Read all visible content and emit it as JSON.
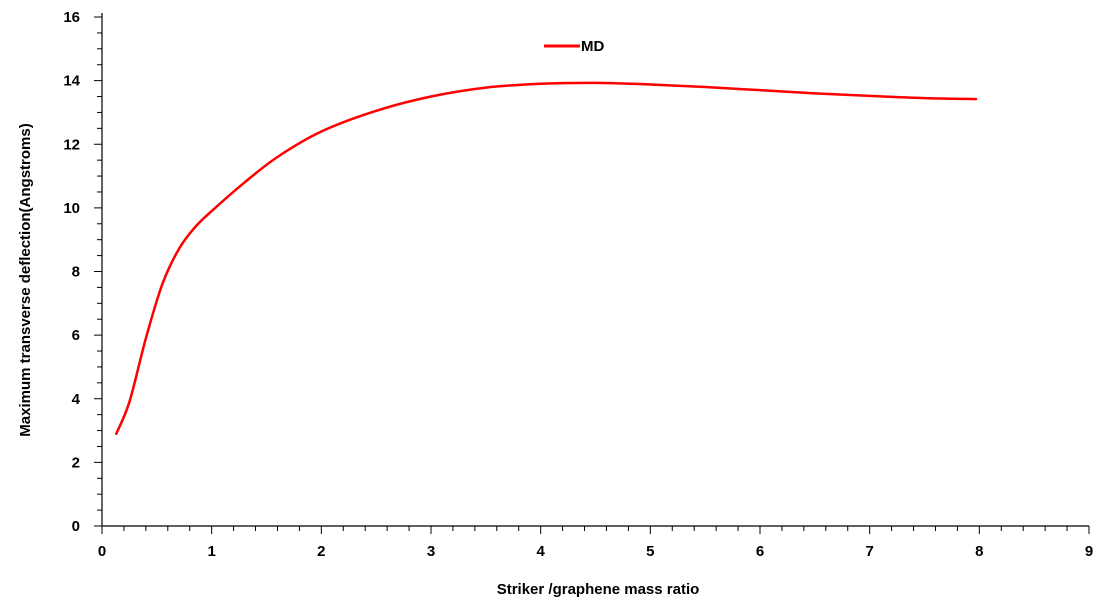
{
  "chart_data": {
    "type": "line",
    "title": "",
    "xlabel": "Striker /graphene mass ratio",
    "ylabel": "Maximum transverse deflection(Angstroms)",
    "xlim": [
      0,
      9
    ],
    "ylim": [
      0,
      16
    ],
    "x_ticks": [
      0,
      1,
      2,
      3,
      4,
      5,
      6,
      7,
      8,
      9
    ],
    "y_ticks": [
      0,
      2,
      4,
      6,
      8,
      10,
      12,
      14,
      16
    ],
    "x_minor_per_major": 5,
    "y_minor_per_major": 4,
    "grid": false,
    "legend_position": "top-center",
    "series": [
      {
        "name": "MD",
        "color": "#ff0000",
        "x": [
          0.13,
          0.25,
          0.4,
          0.55,
          0.7,
          0.85,
          1.0,
          1.3,
          1.6,
          2.0,
          2.5,
          3.0,
          3.5,
          4.0,
          4.5,
          5.0,
          5.5,
          6.0,
          6.5,
          7.0,
          7.5,
          7.97
        ],
        "y": [
          2.9,
          3.9,
          5.9,
          7.6,
          8.7,
          9.4,
          9.9,
          10.8,
          11.6,
          12.4,
          13.05,
          13.5,
          13.78,
          13.9,
          13.93,
          13.88,
          13.8,
          13.7,
          13.6,
          13.52,
          13.45,
          13.42
        ]
      }
    ]
  }
}
